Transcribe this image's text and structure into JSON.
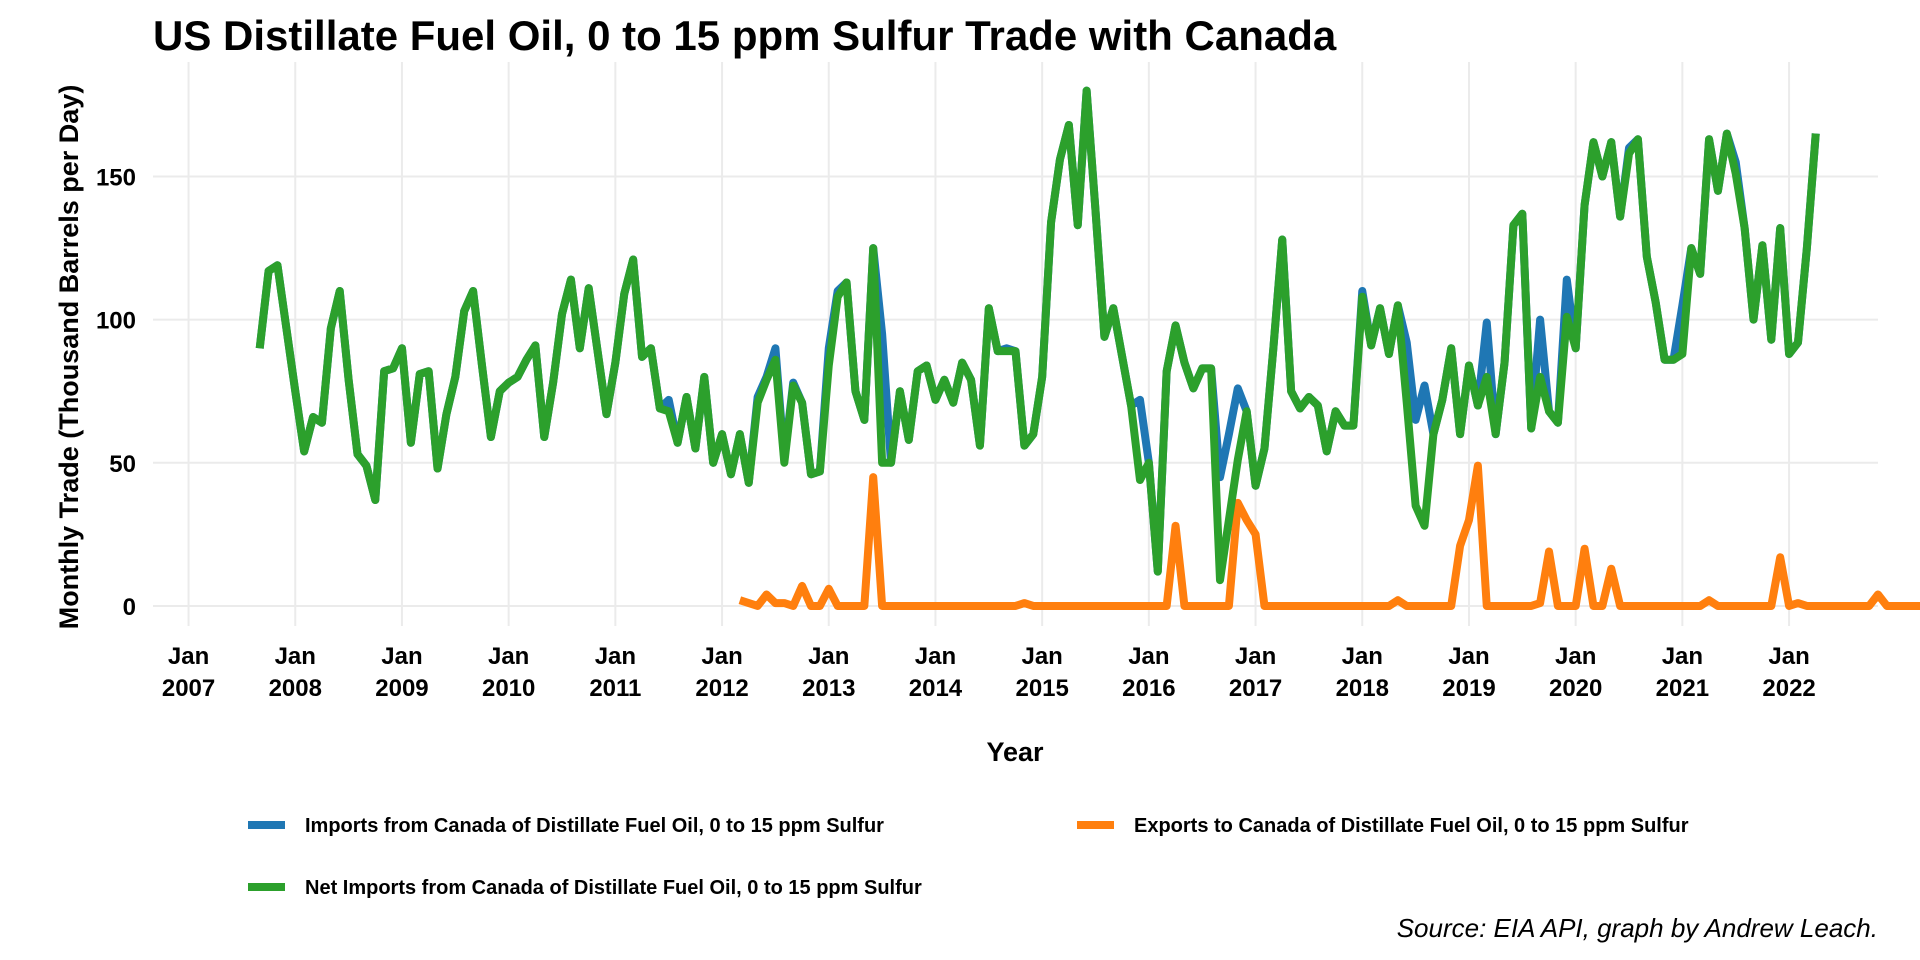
{
  "chart_data": {
    "type": "line",
    "title": "US Distillate Fuel Oil, 0 to 15 ppm Sulfur Trade with Canada",
    "xlabel": "Year",
    "ylabel": "Monthly Trade (Thousand Barrels per Day)",
    "source": "Source: EIA API, graph by Andrew Leach.",
    "xlim": [
      "2006-09",
      "2022-11"
    ],
    "ylim": [
      -7,
      190
    ],
    "x_ticks": [
      {
        "date": "2007-01",
        "line1": "Jan",
        "line2": "2007"
      },
      {
        "date": "2008-01",
        "line1": "Jan",
        "line2": "2008"
      },
      {
        "date": "2009-01",
        "line1": "Jan",
        "line2": "2009"
      },
      {
        "date": "2010-01",
        "line1": "Jan",
        "line2": "2010"
      },
      {
        "date": "2011-01",
        "line1": "Jan",
        "line2": "2011"
      },
      {
        "date": "2012-01",
        "line1": "Jan",
        "line2": "2012"
      },
      {
        "date": "2013-01",
        "line1": "Jan",
        "line2": "2013"
      },
      {
        "date": "2014-01",
        "line1": "Jan",
        "line2": "2014"
      },
      {
        "date": "2015-01",
        "line1": "Jan",
        "line2": "2015"
      },
      {
        "date": "2016-01",
        "line1": "Jan",
        "line2": "2016"
      },
      {
        "date": "2017-01",
        "line1": "Jan",
        "line2": "2017"
      },
      {
        "date": "2018-01",
        "line1": "Jan",
        "line2": "2018"
      },
      {
        "date": "2019-01",
        "line1": "Jan",
        "line2": "2019"
      },
      {
        "date": "2020-01",
        "line1": "Jan",
        "line2": "2020"
      },
      {
        "date": "2021-01",
        "line1": "Jan",
        "line2": "2021"
      },
      {
        "date": "2022-01",
        "line1": "Jan",
        "line2": "2022"
      }
    ],
    "y_ticks": [
      0,
      50,
      100,
      150
    ],
    "grid": true,
    "legend_position": "bottom",
    "series": [
      {
        "name": "Imports from Canada of Distillate Fuel Oil, 0 to 15 ppm Sulfur",
        "color": "#1f77b4",
        "start": "2007-09",
        "values": [
          90,
          117,
          119,
          97,
          75,
          54,
          66,
          64,
          97,
          110,
          79,
          53,
          49,
          37,
          82,
          83,
          90,
          57,
          81,
          82,
          48,
          67,
          80,
          103,
          110,
          84,
          59,
          75,
          78,
          80,
          86,
          91,
          59,
          78,
          102,
          114,
          90,
          111,
          89,
          67,
          85,
          109,
          121,
          87,
          90,
          69,
          72,
          57,
          73,
          55,
          80,
          50,
          60,
          46,
          60,
          43,
          73,
          80,
          90,
          51,
          78,
          71,
          46,
          47,
          90,
          110,
          113,
          75,
          65,
          125,
          95,
          50,
          75,
          58,
          82,
          84,
          72,
          79,
          71,
          85,
          79,
          56,
          104,
          89,
          90,
          89,
          56,
          60,
          80,
          134,
          156,
          168,
          133,
          180,
          138,
          94,
          104,
          87,
          70,
          72,
          50,
          12,
          82,
          98,
          85,
          76,
          83,
          83,
          45,
          60,
          76,
          68,
          42,
          55,
          90,
          128,
          75,
          69,
          73,
          70,
          54,
          68,
          63,
          63,
          110,
          91,
          104,
          88,
          105,
          92,
          65,
          77,
          60,
          72,
          90,
          60,
          84,
          70,
          99,
          60,
          85,
          133,
          137,
          62,
          100,
          68,
          64,
          114,
          90,
          140,
          162,
          150,
          162,
          136,
          160,
          163,
          122,
          106,
          86,
          86,
          105,
          125,
          116,
          163,
          145,
          165,
          155,
          132,
          100,
          126,
          93,
          132,
          88,
          92,
          125,
          165
        ]
      },
      {
        "name": "Exports to Canada of Distillate Fuel Oil, 0 to 15 ppm Sulfur",
        "color": "#ff7f0e",
        "start": "2012-03",
        "values": [
          2,
          1,
          0,
          4,
          1,
          1,
          0,
          7,
          0,
          0,
          6,
          0,
          0,
          0,
          0,
          45,
          0,
          0,
          0,
          0,
          0,
          0,
          0,
          0,
          0,
          0,
          0,
          0,
          0,
          0,
          0,
          0,
          1,
          0,
          0,
          0,
          0,
          0,
          0,
          0,
          0,
          0,
          0,
          0,
          0,
          0,
          0,
          0,
          0,
          28,
          0,
          0,
          0,
          0,
          0,
          0,
          36,
          30,
          25,
          0,
          0,
          0,
          0,
          0,
          0,
          0,
          0,
          0,
          0,
          0,
          0,
          0,
          0,
          0,
          2,
          0,
          0,
          0,
          0,
          0,
          0,
          21,
          30,
          49,
          0,
          0,
          0,
          0,
          0,
          0,
          1,
          19,
          0,
          0,
          0,
          20,
          0,
          0,
          13,
          0,
          0,
          0,
          0,
          0,
          0,
          0,
          0,
          0,
          0,
          2,
          0,
          0,
          0,
          0,
          0,
          0,
          0,
          17,
          0,
          1,
          0,
          0,
          0,
          0,
          0,
          0,
          0,
          0,
          4,
          0,
          0,
          0,
          0,
          0,
          0,
          0
        ]
      },
      {
        "name": "Net Imports from Canada of Distillate Fuel Oil, 0 to 15 ppm Sulfur",
        "color": "#2ca02c",
        "start": "2007-09",
        "values": [
          90,
          117,
          119,
          97,
          75,
          54,
          66,
          64,
          97,
          110,
          79,
          53,
          49,
          37,
          82,
          83,
          90,
          57,
          81,
          82,
          48,
          67,
          80,
          103,
          110,
          84,
          59,
          75,
          78,
          80,
          86,
          91,
          59,
          78,
          102,
          114,
          90,
          111,
          89,
          67,
          85,
          109,
          121,
          87,
          90,
          69,
          68,
          57,
          73,
          55,
          80,
          50,
          60,
          46,
          60,
          43,
          71,
          79,
          86,
          50,
          77,
          71,
          46,
          47,
          84,
          108,
          113,
          75,
          65,
          125,
          50,
          50,
          75,
          58,
          82,
          84,
          72,
          79,
          71,
          85,
          79,
          56,
          104,
          89,
          89,
          89,
          56,
          60,
          80,
          134,
          156,
          168,
          133,
          180,
          138,
          94,
          104,
          87,
          70,
          44,
          50,
          12,
          82,
          98,
          85,
          76,
          83,
          83,
          9,
          30,
          51,
          68,
          42,
          55,
          90,
          128,
          75,
          69,
          73,
          70,
          54,
          68,
          63,
          63,
          108,
          91,
          104,
          88,
          105,
          71,
          35,
          28,
          60,
          72,
          90,
          60,
          84,
          70,
          80,
          60,
          85,
          133,
          137,
          62,
          80,
          68,
          64,
          101,
          90,
          140,
          162,
          150,
          162,
          136,
          158,
          163,
          122,
          106,
          86,
          86,
          88,
          125,
          116,
          163,
          145,
          165,
          151,
          132,
          100,
          126,
          93,
          132,
          88,
          92,
          125,
          165
        ]
      }
    ]
  }
}
